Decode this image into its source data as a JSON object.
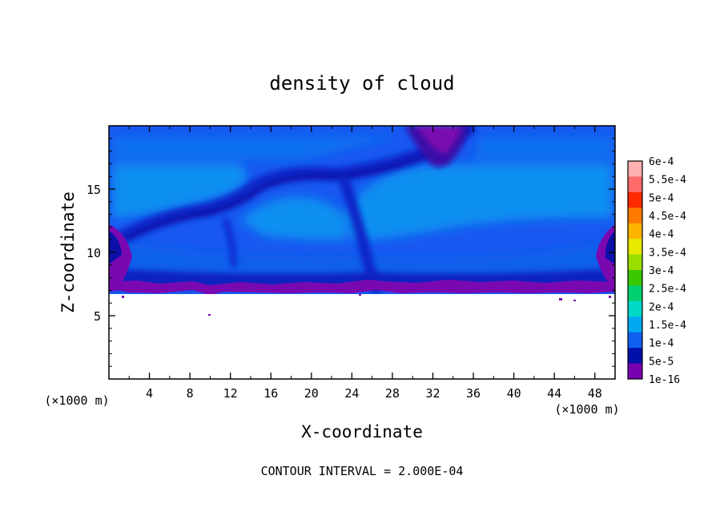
{
  "chart_data": {
    "type": "heatmap",
    "title": "density of cloud",
    "xlabel": "X-coordinate",
    "ylabel": "Z-coordinate",
    "x_unit_left": "(×1000 m)",
    "x_unit_right": "(×1000 m)",
    "footer": "CONTOUR INTERVAL = 2.000E-04",
    "xlim": [
      0,
      50
    ],
    "ylim": [
      0,
      20
    ],
    "x_ticks": [
      4,
      8,
      12,
      16,
      20,
      24,
      28,
      32,
      36,
      40,
      44,
      48
    ],
    "x_tick_labels": [
      "4",
      "8",
      "12",
      "16",
      "20",
      "24",
      "28",
      "32",
      "36",
      "40",
      "44",
      "48"
    ],
    "y_ticks": [
      5,
      10,
      15
    ],
    "y_tick_labels": [
      "5",
      "10",
      "15"
    ],
    "colorbar": {
      "labels": [
        "6e-4",
        "5.5e-4",
        "5e-4",
        "4.5e-4",
        "4e-4",
        "3.5e-4",
        "3e-4",
        "2.5e-4",
        "2e-4",
        "1.5e-4",
        "1e-4",
        "5e-5",
        "1e-16"
      ],
      "colors": [
        "#ffb0b0",
        "#ff6a6a",
        "#ff2a00",
        "#ff7a00",
        "#ffb400",
        "#e8e800",
        "#9ade00",
        "#3ac800",
        "#00d070",
        "#00d8c8",
        "#00a8f0",
        "#1060f0",
        "#0010a8",
        "#7800b0"
      ]
    },
    "field_colors": {
      "base_mid": "#1858f0",
      "light_band": "#0a8ff0",
      "mid_band": "#0f70f0",
      "dark_filament": "#0a28c8",
      "very_dark": "#0c10a8",
      "purple_edge": "#7a08b0",
      "background": "#ffffff"
    },
    "cloud_base_z": 7,
    "cloud_top_z": 20
  }
}
